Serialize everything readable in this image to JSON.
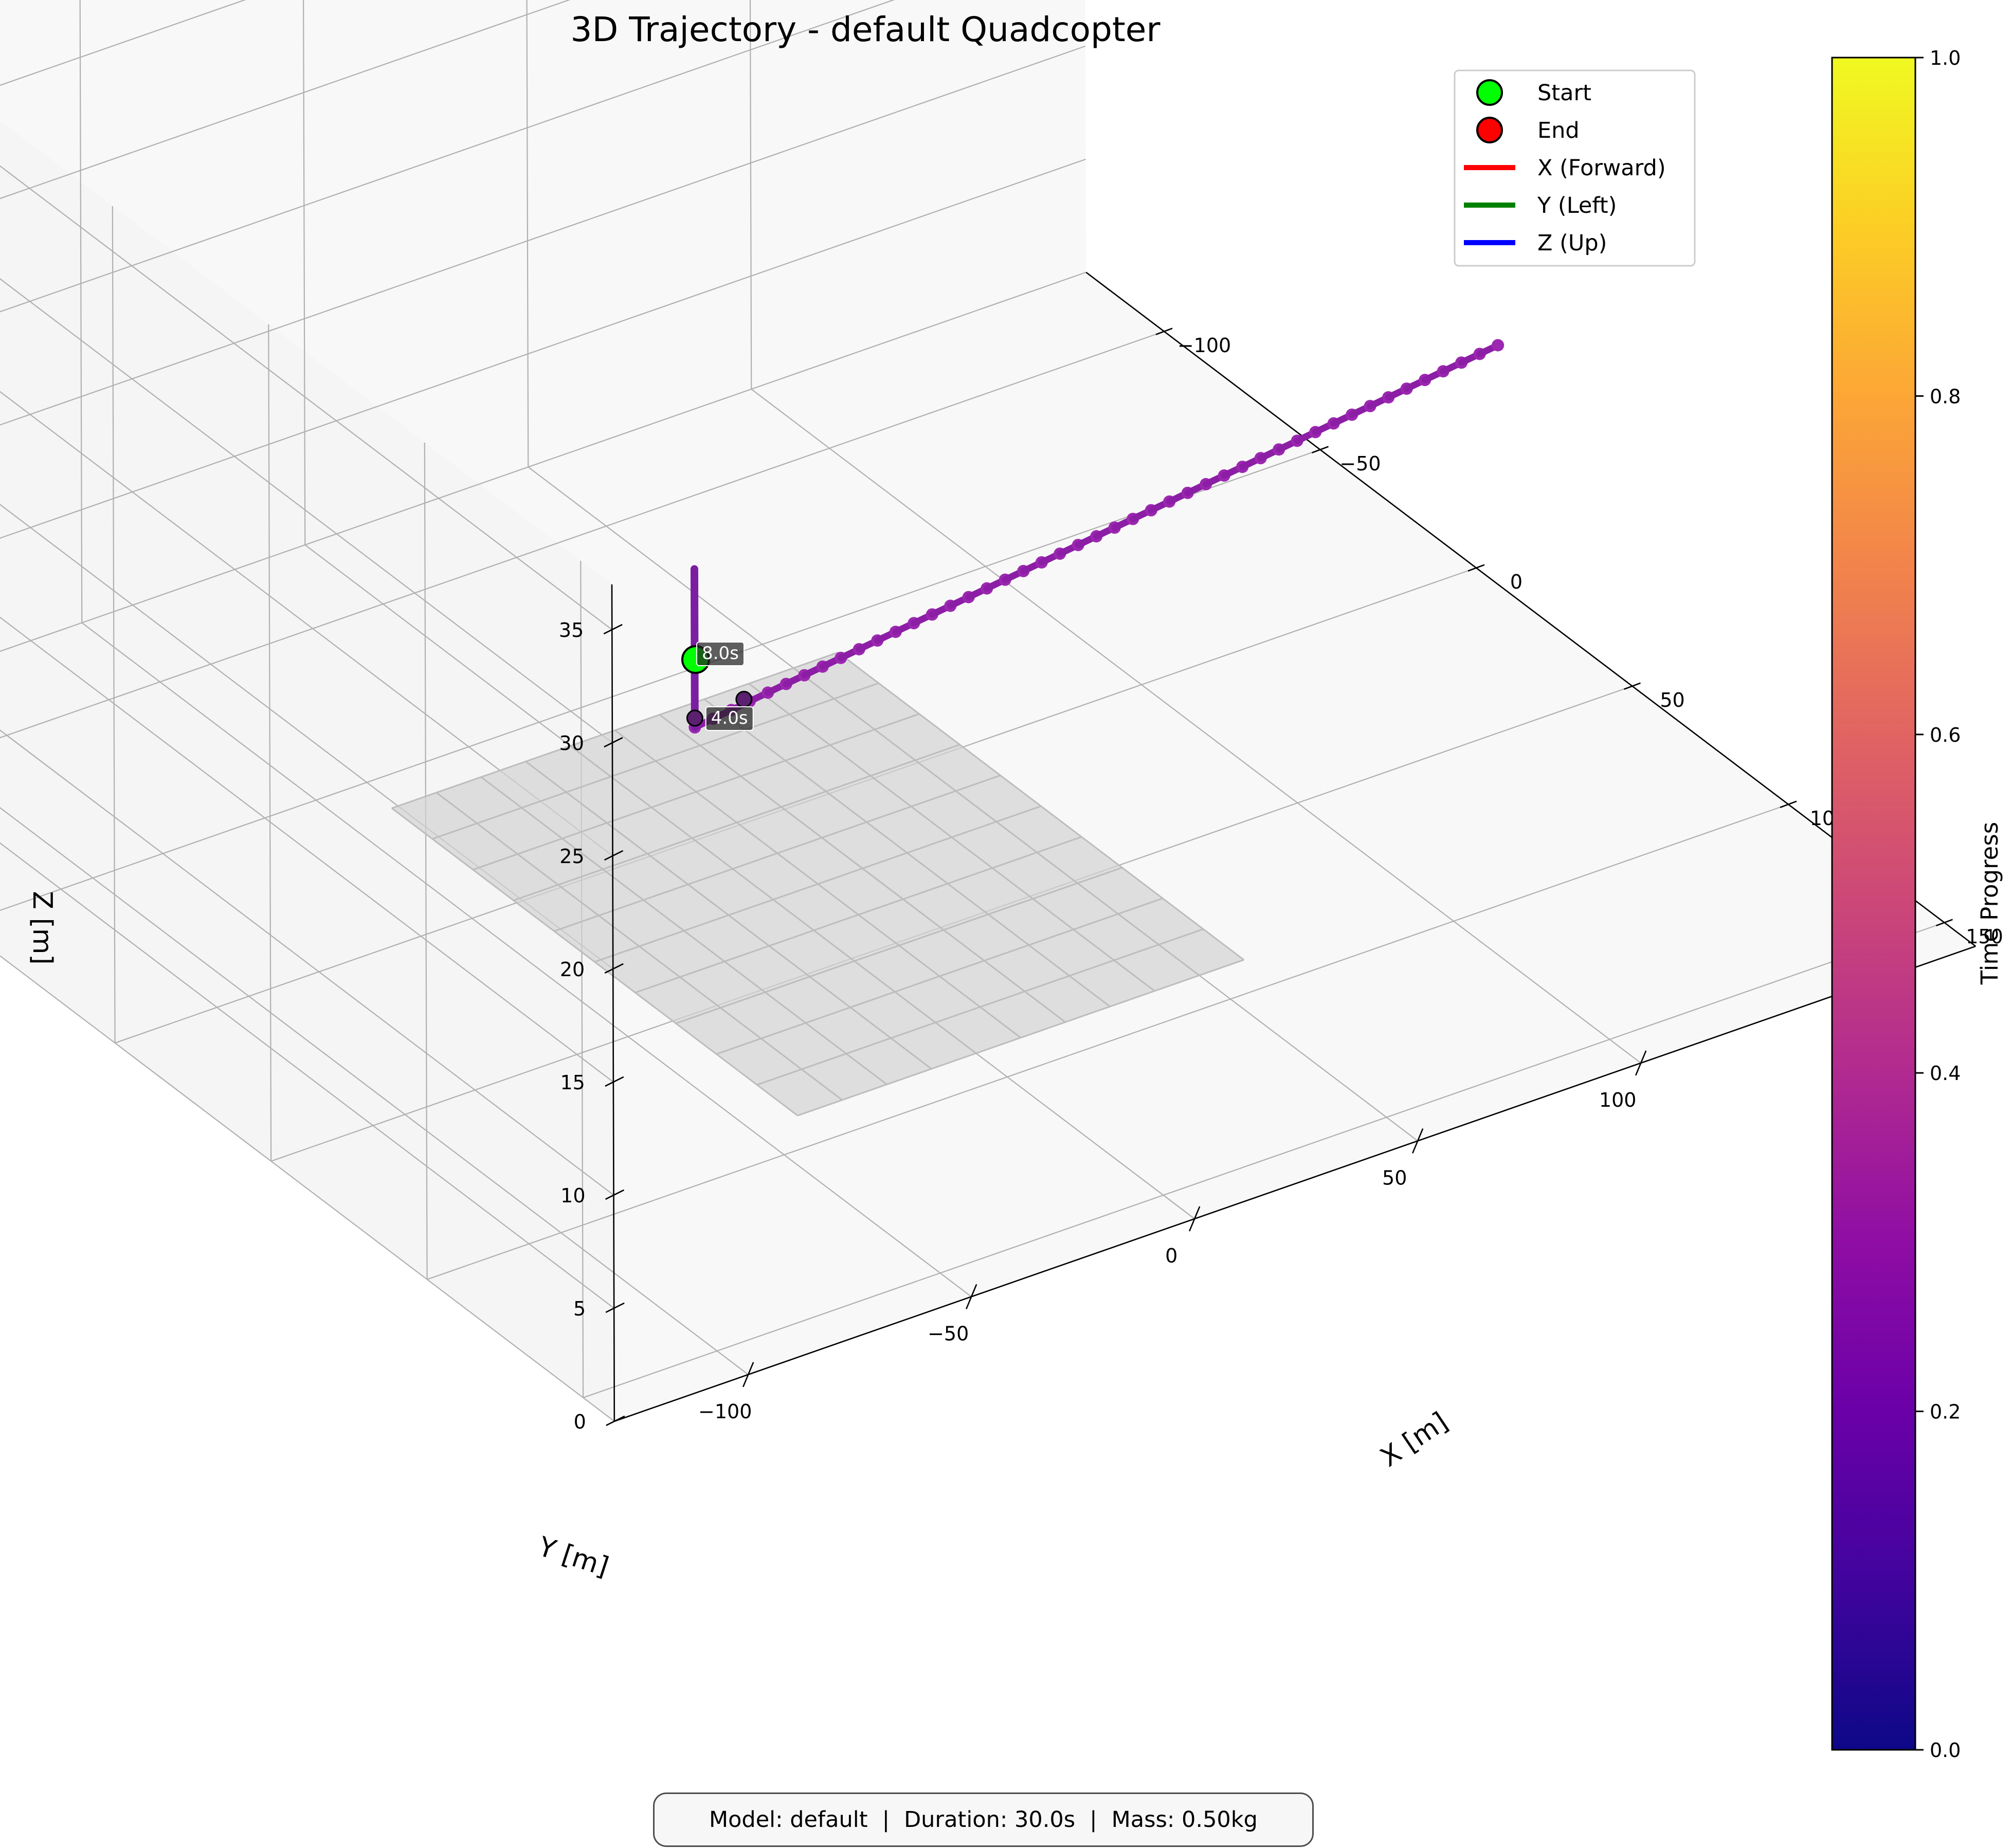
{
  "chart_data": {
    "type": "scatter",
    "subtype": "3d-line-trajectory",
    "title": "3D Trajectory - default Quadcopter",
    "xlabel": "X [m]",
    "ylabel": "Y [m]",
    "zlabel": "Z [m]",
    "xlim": [
      -125,
      160
    ],
    "ylim": [
      -130,
      175
    ],
    "zlim": [
      0,
      37
    ],
    "x_ticks": [
      "−100",
      "−50",
      "0",
      "50",
      "100",
      "150"
    ],
    "x_tick_values": [
      -100,
      -50,
      0,
      50,
      100,
      150
    ],
    "y_ticks": [
      "−100",
      "−50",
      "0",
      "50",
      "100"
    ],
    "y_tick_values": [
      -100,
      -50,
      0,
      50,
      100
    ],
    "z_ticks": [
      "0",
      "5",
      "10",
      "15",
      "20",
      "25",
      "30",
      "35"
    ],
    "z_tick_values": [
      0,
      5,
      10,
      15,
      20,
      25,
      30,
      35
    ],
    "grid": true,
    "legend_position": "top-right",
    "legend": [
      {
        "label": "Start",
        "marker": "circle",
        "color": "#00ff00"
      },
      {
        "label": "End",
        "marker": "circle",
        "color": "#ff0000"
      },
      {
        "label": "X (Forward)",
        "marker": "line",
        "color": "#ff0000"
      },
      {
        "label": "Y (Left)",
        "marker": "line",
        "color": "#008000"
      },
      {
        "label": "Z (Up)",
        "marker": "line",
        "color": "#0000ff"
      }
    ],
    "trajectory": {
      "x_start": 0,
      "x_end": 0,
      "y_start": 0,
      "y_end": 180,
      "z_start": 5,
      "z_end": 9.5,
      "colormap": "plasma"
    },
    "time_annotations": [
      {
        "label": "4.0s",
        "x": 0,
        "y": 2,
        "z": 5
      },
      {
        "label": "8.0s",
        "x": 0,
        "y": 0,
        "z": 8
      }
    ],
    "colorbar": {
      "label": "Time Progress",
      "ticks": [
        "0.0",
        "0.2",
        "0.4",
        "0.6",
        "0.8",
        "1.0"
      ],
      "tick_values": [
        0,
        0.2,
        0.4,
        0.6,
        0.8,
        1.0
      ],
      "colormap": "plasma"
    },
    "colors": {
      "trajectory_dark": "#7b1fa2",
      "trajectory_mid": "#9c27b0",
      "ground_plane": "#d3d3d3"
    }
  },
  "info": {
    "model": "Model: default",
    "duration": "Duration: 30.0s",
    "mass": "Mass: 0.50kg",
    "separator": "|"
  }
}
